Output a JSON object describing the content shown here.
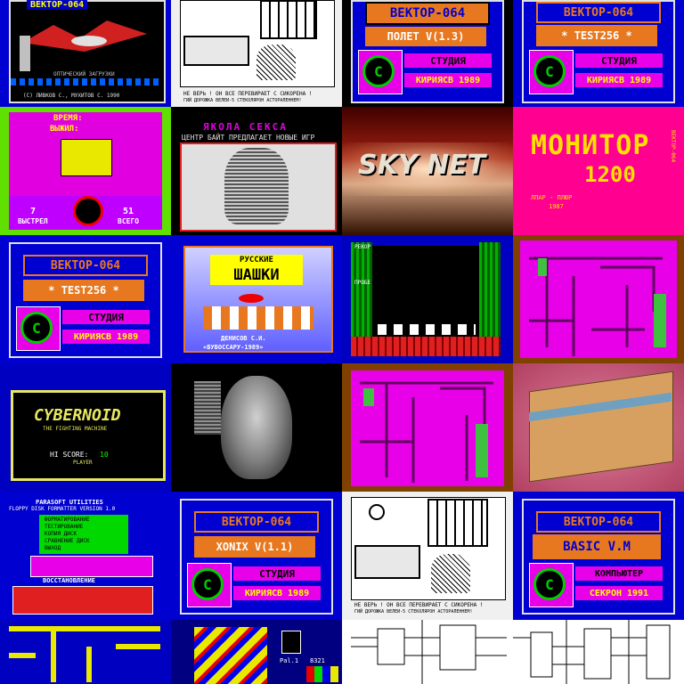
{
  "tiles": {
    "t00": {
      "header": "ВЕКТОР-064",
      "credit": "(C) ЛИВКОВ С., МУХИТОВ С. 1990",
      "caption": "ОПТИЧЕСКИЙ ЗАГРУЗКИ"
    },
    "t01": {
      "caption": "НЕ ВЕРЬ ! ОН ВСЕ ПЕРЕВИРАЕТ С СИКОРЕНА !",
      "sub": "ГИЙ ДОРОЖКА ВЕЛЕИ-5 СТЕКОЛЯРОН АСТОРАЛЕННЕМ!"
    },
    "t02": {
      "brand": "ВЕКТОР-064",
      "program": "ПОЛЕТ V(1.3)",
      "studio": "СТУДИЯ",
      "author": "КИРИЯСВ 1989",
      "logo": "C"
    },
    "t03": {
      "brand": "ВЕКТОР-064",
      "program": "* TEST256 *",
      "studio": "СТУДИЯ",
      "author": "КИРИЯСВ 1989",
      "logo": "C"
    },
    "t10": {
      "time_label": "ВРЕМЯ:",
      "hits_label": "ВЫЖИЛ:",
      "shots_label": "ВЫСТРЕЛ",
      "shots_value": "7",
      "total_label": "ВСЕГО",
      "total_value": "51"
    },
    "t11": {
      "title": "ЯКОЛА СЕКСА",
      "subtitle": "ЦЕНТР БАЙТ ПРЕДЛАГАЕТ НОВЫЕ ИГР"
    },
    "t12": {
      "title": "SKY NET"
    },
    "t13": {
      "title": "МОНИТОР",
      "version": "1200",
      "credit": "ЛПАР - ПЛЮР",
      "year": "1987",
      "side": "ВЕКТОР-064"
    },
    "t20": {
      "brand": "ВЕКТОР-064",
      "program": "* TEST256 *",
      "studio": "СТУДИЯ",
      "author": "КИРИЯСВ 1989",
      "logo": "C"
    },
    "t21": {
      "line1": "РУССКИЕ",
      "line2": "ШАШКИ",
      "author": "ДЕНИСОВ С.И.",
      "org": "«БУБОССАРУ-1989»"
    },
    "t22": {
      "label1": "РЕКОР",
      "label2": "ПРОБЕ"
    },
    "t23": {},
    "t30": {
      "title": "CYBERNOID",
      "subtitle": "THE FIGHTING MACHINE",
      "score_label": "HI SCORE:",
      "score_value": "10",
      "extra": "PLAYER"
    },
    "t31": {},
    "t32": {},
    "t33": {},
    "t40": {
      "header": "PARASOFT UTILITIES",
      "title": "FLOPPY DISK FORMATTER VERSION 1.0",
      "menu": [
        "ФОРМАТИРОВАНИЕ",
        "ТЕСТИРОВАНИЕ",
        "КОПИЯ ДИСК",
        "СРАВНЕНИЕ ДИСК",
        "ВЫХОД"
      ],
      "section": "ВОССТАНОВЛЕНИЕ"
    },
    "t41": {
      "brand": "ВЕКТОР-064",
      "program": "XONIX V(1.1)",
      "studio": "СТУДИЯ",
      "author": "КИРИЯСВ 1989",
      "logo": "C"
    },
    "t42": {
      "caption": "НЕ ВЕРЬ ! ОН ВСЕ ПЕРЕВИРАЕТ С СИКОРЕНА !",
      "sub": "ГИЙ ДОРОЖКА ВЕЛЕИ-5 СТЕКОЛЯРОН АСТОРАЛЕННЕМ!"
    },
    "t43": {
      "brand": "ВЕКТОР-064",
      "program": "BASIC V.M",
      "studio": "КОМПЬЮТЕР",
      "author": "СЕКРОН 1991",
      "logo": "C"
    },
    "t50": {},
    "t51": {
      "pal_label": "Pal.1",
      "pal_value": "8321"
    },
    "t52": {},
    "t53": {}
  },
  "colors": {
    "blue": "#0000d8",
    "orange": "#e87820",
    "magenta": "#e800e8",
    "pink": "#ff0090",
    "green": "#00d800",
    "yellow": "#ffff00",
    "cyan": "#00e8e8"
  }
}
